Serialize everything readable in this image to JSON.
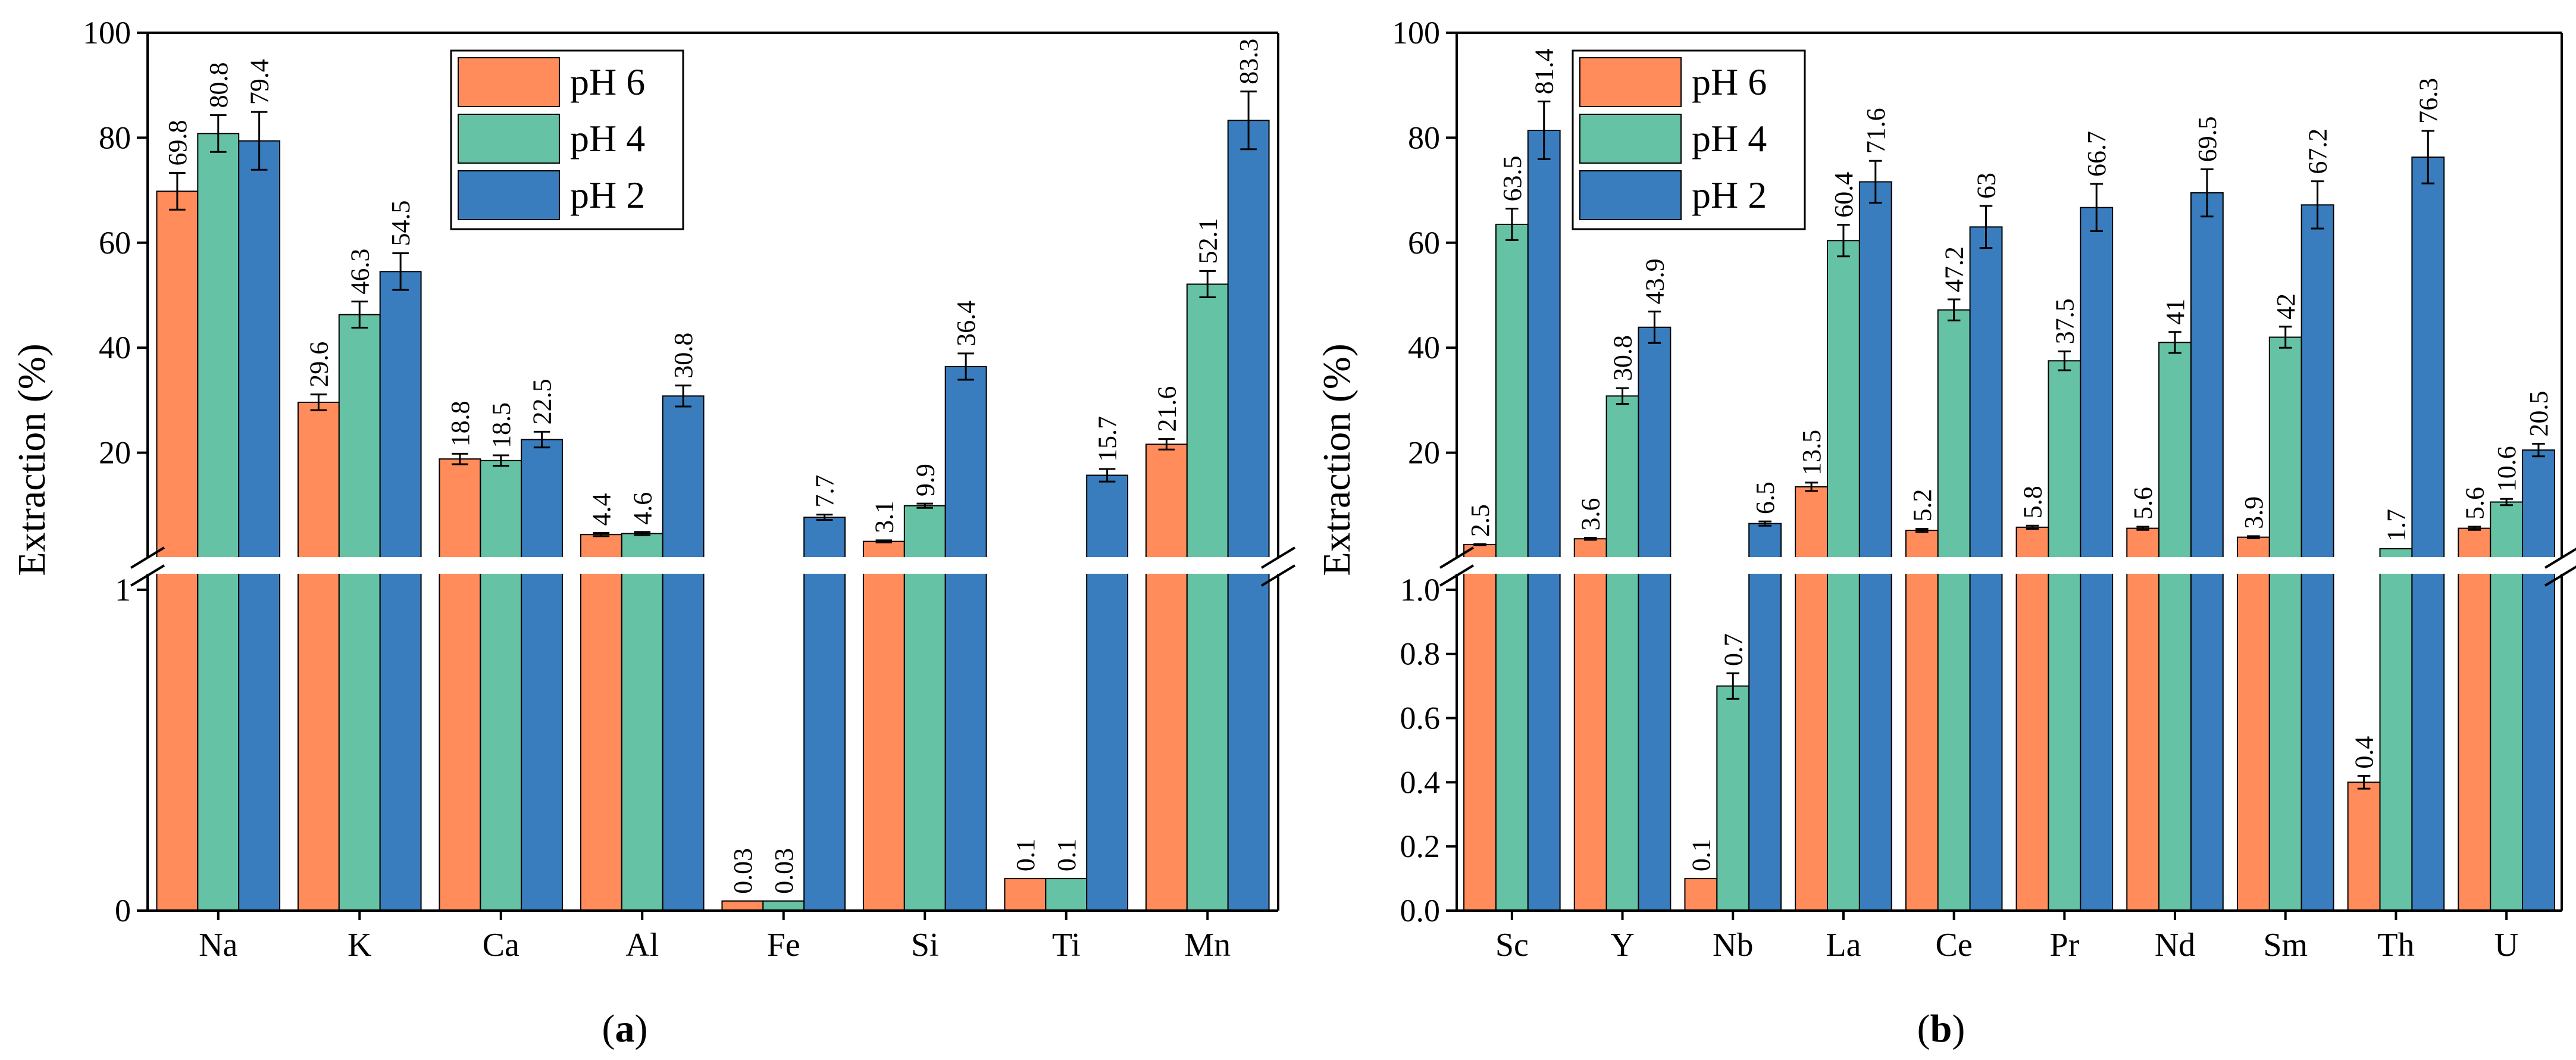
{
  "chart_data": [
    {
      "type": "bar",
      "caption_letter": "a",
      "ylabel": "Extraction (%)",
      "categories": [
        "Na",
        "K",
        "Ca",
        "Al",
        "Fe",
        "Si",
        "Ti",
        "Mn"
      ],
      "y_axis": "broken",
      "upper_segment": {
        "range": [
          0,
          100
        ],
        "ticks": [
          "20",
          "40",
          "60",
          "80",
          "100"
        ]
      },
      "lower_segment": {
        "range": [
          0,
          1.1
        ],
        "ticks": [
          "0",
          "1"
        ]
      },
      "legend": {
        "placement": "top-center",
        "entries": [
          "pH 6",
          "pH 4",
          "pH 2"
        ]
      },
      "series": [
        {
          "name": "pH 6",
          "color": "#FF8C5A",
          "values": [
            69.8,
            29.6,
            18.8,
            4.4,
            0.03,
            3.1,
            0.1,
            21.6
          ],
          "labels": [
            "69.8",
            "29.6",
            "18.8",
            "4.4",
            "0.03",
            "3.1",
            "0.1",
            "21.6"
          ],
          "errors": [
            3.5,
            1.5,
            1.0,
            0.3,
            0.0,
            0.2,
            0.0,
            1.0
          ]
        },
        {
          "name": "pH 4",
          "color": "#66C2A4",
          "values": [
            80.8,
            46.3,
            18.5,
            4.6,
            0.03,
            9.9,
            0.1,
            52.1
          ],
          "labels": [
            "80.8",
            "46.3",
            "18.5",
            "4.6",
            "0.03",
            "9.9",
            "0.1",
            "52.1"
          ],
          "errors": [
            3.5,
            2.5,
            1.0,
            0.3,
            0.0,
            0.4,
            0.0,
            2.5
          ]
        },
        {
          "name": "pH 2",
          "color": "#3A7DBE",
          "values": [
            79.4,
            54.5,
            22.5,
            30.8,
            7.7,
            36.4,
            15.7,
            83.3
          ],
          "labels": [
            "79.4",
            "54.5",
            "22.5",
            "30.8",
            "7.7",
            "36.4",
            "15.7",
            "83.3"
          ],
          "errors": [
            5.5,
            3.5,
            1.5,
            2.0,
            0.5,
            2.5,
            1.2,
            5.5
          ]
        }
      ]
    },
    {
      "type": "bar",
      "caption_letter": "b",
      "ylabel": "Extraction (%)",
      "categories": [
        "Sc",
        "Y",
        "Nb",
        "La",
        "Ce",
        "Pr",
        "Nd",
        "Sm",
        "Th",
        "U"
      ],
      "y_axis": "broken",
      "upper_segment": {
        "range": [
          0,
          100
        ],
        "ticks": [
          "20",
          "40",
          "60",
          "80",
          "100"
        ]
      },
      "lower_segment": {
        "range": [
          0,
          1.1
        ],
        "ticks": [
          "0.0",
          "0.2",
          "0.4",
          "0.6",
          "0.8",
          "1.0"
        ]
      },
      "legend": {
        "placement": "top-left",
        "entries": [
          "pH 6",
          "pH 4",
          "pH 2"
        ]
      },
      "series": [
        {
          "name": "pH 6",
          "color": "#FF8C5A",
          "values": [
            2.5,
            3.6,
            0.1,
            13.5,
            5.2,
            5.8,
            5.6,
            3.9,
            0.4,
            5.6
          ],
          "labels": [
            "2.5",
            "3.6",
            "0.1",
            "13.5",
            "5.2",
            "5.8",
            "5.6",
            "3.9",
            "0.4",
            "5.6"
          ],
          "errors": [
            0.1,
            0.2,
            0.0,
            0.8,
            0.3,
            0.3,
            0.3,
            0.2,
            0.02,
            0.3
          ]
        },
        {
          "name": "pH 4",
          "color": "#66C2A4",
          "values": [
            63.5,
            30.8,
            0.7,
            60.4,
            47.2,
            37.5,
            41,
            42,
            1.7,
            10.6
          ],
          "labels": [
            "63.5",
            "30.8",
            "0.7",
            "60.4",
            "47.2",
            "37.5",
            "41",
            "42",
            "1.7",
            "10.6"
          ],
          "errors": [
            3.0,
            1.5,
            0.04,
            3.0,
            2.0,
            1.8,
            2.0,
            2.0,
            0.0,
            0.6
          ]
        },
        {
          "name": "pH 2",
          "color": "#3A7DBE",
          "values": [
            81.4,
            43.9,
            6.5,
            71.6,
            63,
            66.7,
            69.5,
            67.2,
            76.3,
            20.5
          ],
          "labels": [
            "81.4",
            "43.9",
            "6.5",
            "71.6",
            "63",
            "66.7",
            "69.5",
            "67.2",
            "76.3",
            "20.5"
          ],
          "errors": [
            5.5,
            3.0,
            0.4,
            4.0,
            4.0,
            4.5,
            4.5,
            4.5,
            5.0,
            1.2
          ]
        }
      ]
    }
  ]
}
